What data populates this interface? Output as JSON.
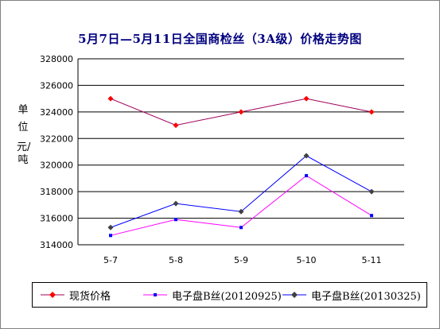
{
  "chart_data": {
    "type": "line",
    "title": "5月7日—5月11日全国商检丝（3A级）价格走势图",
    "ylabel_unit": "单 位",
    "ylabel_name": "元/吨",
    "categories": [
      "5-7",
      "5-8",
      "5-9",
      "5-10",
      "5-11"
    ],
    "ylim": [
      314000,
      328000
    ],
    "yticks": [
      "314000",
      "316000",
      "318000",
      "320000",
      "322000",
      "324000",
      "326000",
      "328000"
    ],
    "grid": true,
    "legend_position": "bottom",
    "series": [
      {
        "name": "现货价格",
        "color": "#a0005a",
        "marker_color": "#ff0000",
        "marker": "diamond",
        "values": [
          325000,
          323000,
          324000,
          325000,
          324000
        ]
      },
      {
        "name": "电子盘B丝(20120925)",
        "color": "#ff00ff",
        "marker_color": "#0000ff",
        "marker": "square",
        "values": [
          314700,
          315900,
          315300,
          319200,
          316200
        ]
      },
      {
        "name": "电子盘B丝(20130325)",
        "color": "#0000ff",
        "marker_color": "#404040",
        "marker": "diamond",
        "values": [
          315300,
          317100,
          316500,
          320700,
          318000
        ]
      }
    ]
  }
}
